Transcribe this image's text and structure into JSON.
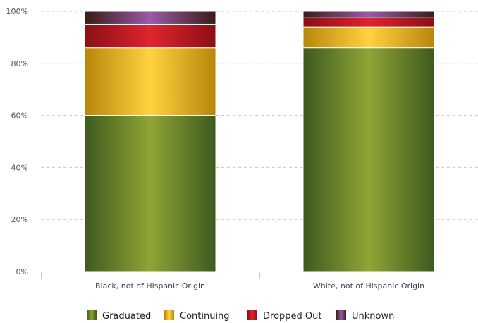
{
  "chart_data": {
    "type": "bar",
    "stacked": true,
    "percent": true,
    "categories": [
      "Black, not of Hispanic Origin",
      "White, not of Hispanic Origin"
    ],
    "series": [
      {
        "name": "Graduated",
        "values": [
          60,
          86
        ],
        "color": "#6b8a2a"
      },
      {
        "name": "Continuing",
        "values": [
          26,
          8
        ],
        "color": "#f2b81f"
      },
      {
        "name": "Dropped Out",
        "values": [
          9,
          3.5
        ],
        "color": "#c4141c"
      },
      {
        "name": "Unknown",
        "values": [
          5,
          2.5
        ],
        "color": "#7a4a8e"
      }
    ],
    "y_ticks": [
      "0%",
      "20%",
      "40%",
      "60%",
      "80%",
      "100%"
    ],
    "ylim": [
      0,
      100
    ],
    "grid": true,
    "legend_position": "bottom"
  }
}
